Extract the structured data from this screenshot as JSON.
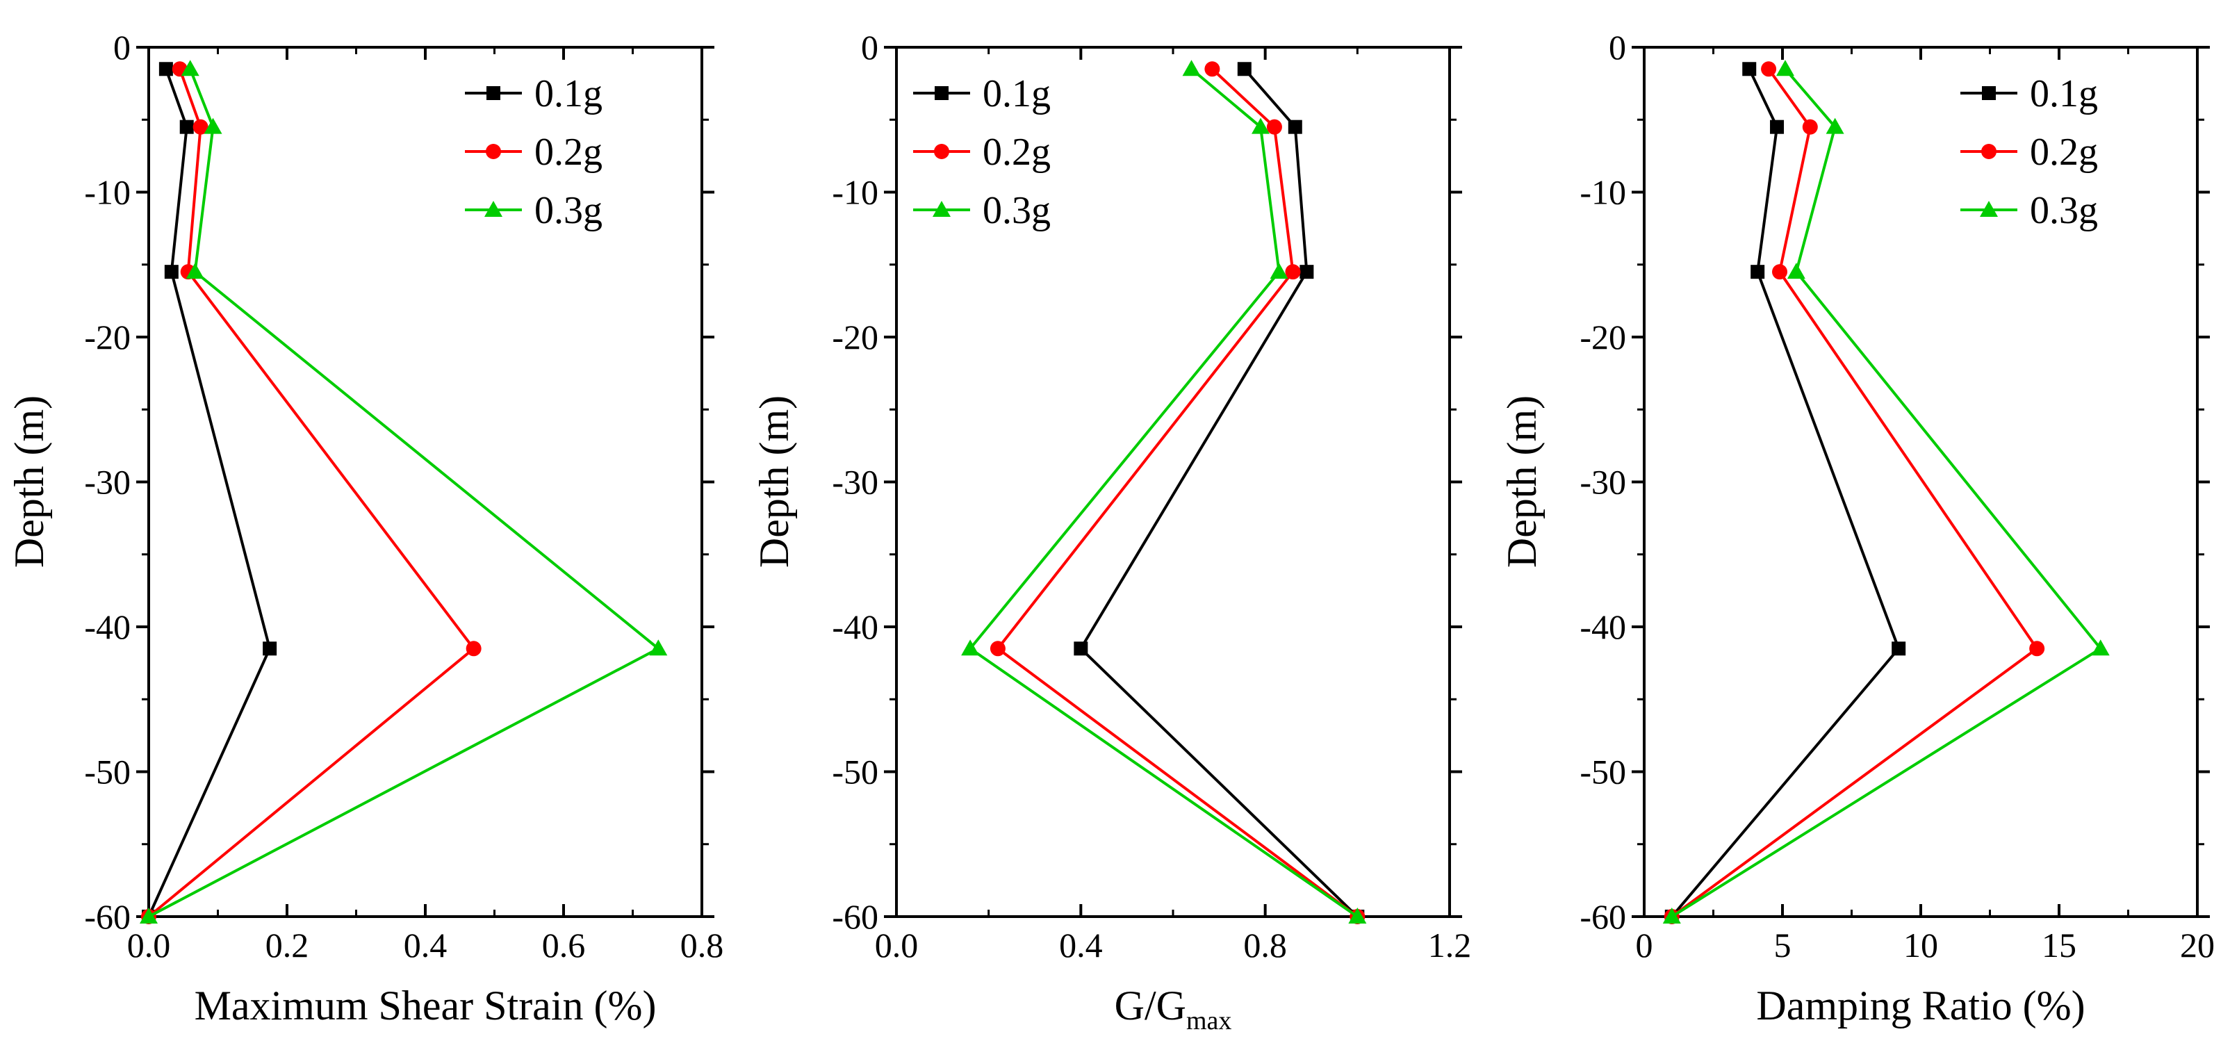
{
  "chart_data": [
    {
      "type": "line",
      "xlabel": "Maximum Shear Strain (%)",
      "ylabel": "Depth (m)",
      "xlim": [
        0.0,
        0.8
      ],
      "ylim": [
        -60,
        0
      ],
      "xticks": [
        0.0,
        0.2,
        0.4,
        0.6,
        0.8
      ],
      "xtick_labels": [
        "0.0",
        "0.2",
        "0.4",
        "0.6",
        "0.8"
      ],
      "yticks": [
        0,
        -10,
        -20,
        -30,
        -40,
        -50,
        -60
      ],
      "ytick_labels": [
        "0",
        "-10",
        "-20",
        "-30",
        "-40",
        "-50",
        "-60"
      ],
      "legend_position": "top-right",
      "series": [
        {
          "name": "0.1g",
          "color": "#000000",
          "marker": "square",
          "x": [
            0.025,
            0.055,
            0.033,
            0.175,
            0.0
          ],
          "y": [
            -1.5,
            -5.5,
            -15.5,
            -41.5,
            -60
          ]
        },
        {
          "name": "0.2g",
          "color": "#ff0000",
          "marker": "circle",
          "x": [
            0.045,
            0.075,
            0.057,
            0.47,
            0.0
          ],
          "y": [
            -1.5,
            -5.5,
            -15.5,
            -41.5,
            -60
          ]
        },
        {
          "name": "0.3g",
          "color": "#00cc00",
          "marker": "triangle",
          "x": [
            0.06,
            0.093,
            0.067,
            0.737,
            0.0
          ],
          "y": [
            -1.5,
            -5.5,
            -15.5,
            -41.5,
            -60
          ]
        }
      ]
    },
    {
      "type": "line",
      "xlabel": "G/G",
      "xlabel_sub": "max",
      "ylabel": "Depth (m)",
      "xlim": [
        0.0,
        1.2
      ],
      "ylim": [
        -60,
        0
      ],
      "xticks": [
        0.0,
        0.4,
        0.8,
        1.2
      ],
      "xtick_labels": [
        "0.0",
        "0.4",
        "0.8",
        "1.2"
      ],
      "yticks": [
        0,
        -10,
        -20,
        -30,
        -40,
        -50,
        -60
      ],
      "ytick_labels": [
        "0",
        "-10",
        "-20",
        "-30",
        "-40",
        "-50",
        "-60"
      ],
      "legend_position": "top-left",
      "series": [
        {
          "name": "0.1g",
          "color": "#000000",
          "marker": "square",
          "x": [
            0.755,
            0.865,
            0.89,
            0.4,
            1.0
          ],
          "y": [
            -1.5,
            -5.5,
            -15.5,
            -41.5,
            -60
          ]
        },
        {
          "name": "0.2g",
          "color": "#ff0000",
          "marker": "circle",
          "x": [
            0.685,
            0.82,
            0.86,
            0.22,
            1.0
          ],
          "y": [
            -1.5,
            -5.5,
            -15.5,
            -41.5,
            -60
          ]
        },
        {
          "name": "0.3g",
          "color": "#00cc00",
          "marker": "triangle",
          "x": [
            0.64,
            0.79,
            0.83,
            0.16,
            1.0
          ],
          "y": [
            -1.5,
            -5.5,
            -15.5,
            -41.5,
            -60
          ]
        }
      ]
    },
    {
      "type": "line",
      "xlabel": "Damping Ratio (%)",
      "ylabel": "Depth (m)",
      "xlim": [
        0,
        20
      ],
      "ylim": [
        -60,
        0
      ],
      "xticks": [
        0,
        5,
        10,
        15,
        20
      ],
      "xtick_labels": [
        "0",
        "5",
        "10",
        "15",
        "20"
      ],
      "yticks": [
        0,
        -10,
        -20,
        -30,
        -40,
        -50,
        -60
      ],
      "ytick_labels": [
        "0",
        "-10",
        "-20",
        "-30",
        "-40",
        "-50",
        "-60"
      ],
      "legend_position": "top-right",
      "series": [
        {
          "name": "0.1g",
          "color": "#000000",
          "marker": "square",
          "x": [
            3.8,
            4.8,
            4.1,
            9.2,
            1.0
          ],
          "y": [
            -1.5,
            -5.5,
            -15.5,
            -41.5,
            -60
          ]
        },
        {
          "name": "0.2g",
          "color": "#ff0000",
          "marker": "circle",
          "x": [
            4.5,
            6.0,
            4.9,
            14.2,
            1.0
          ],
          "y": [
            -1.5,
            -5.5,
            -15.5,
            -41.5,
            -60
          ]
        },
        {
          "name": "0.3g",
          "color": "#00cc00",
          "marker": "triangle",
          "x": [
            5.1,
            6.9,
            5.5,
            16.5,
            1.0
          ],
          "y": [
            -1.5,
            -5.5,
            -15.5,
            -41.5,
            -60
          ]
        }
      ]
    }
  ]
}
